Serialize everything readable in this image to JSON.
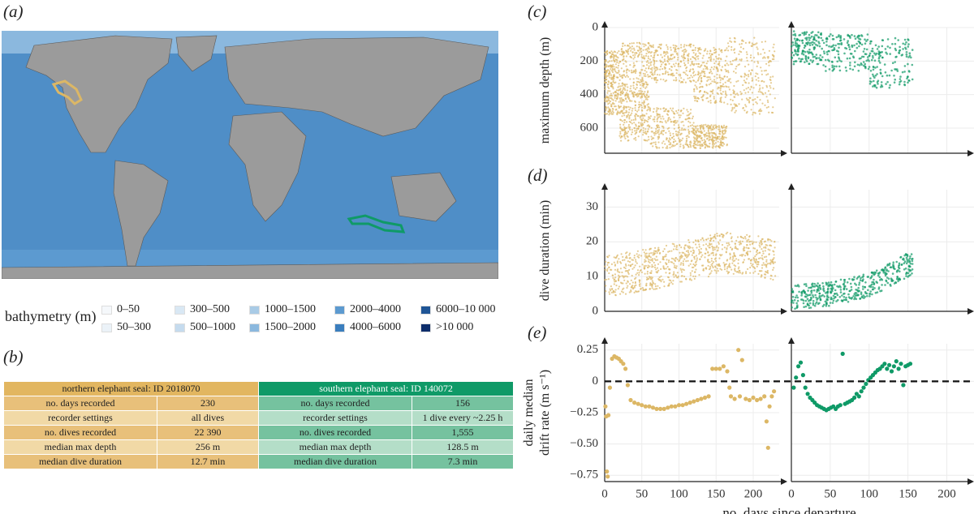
{
  "panels": {
    "a": "(a)",
    "b": "(b)",
    "c": "(c)",
    "d": "(d)",
    "e": "(e)"
  },
  "legend": {
    "title": "bathymetry (m)",
    "items": [
      {
        "label": "0–50",
        "color": "#f5f8fb"
      },
      {
        "label": "50–300",
        "color": "#ebf2f8"
      },
      {
        "label": "300–500",
        "color": "#d9e8f4"
      },
      {
        "label": "500–1000",
        "color": "#c5dbee"
      },
      {
        "label": "1000–1500",
        "color": "#a9cbe6"
      },
      {
        "label": "1500–2000",
        "color": "#8bb8de"
      },
      {
        "label": "2000–4000",
        "color": "#5c9ad0"
      },
      {
        "label": "4000–6000",
        "color": "#3a7ebe"
      },
      {
        "label": "6000–10 000",
        "color": "#1f5596"
      },
      {
        "label": ">10 000",
        "color": "#0d2d6b"
      }
    ]
  },
  "colors": {
    "northern": "#dcb765",
    "southern": "#0f9a67",
    "land": "#9b9b9b",
    "ocean": "#4f8ec7"
  },
  "table": {
    "northern_header": "northern elephant seal: ID 2018070",
    "southern_header": "southern elephant seal: ID 140072",
    "rows": [
      {
        "label": "no. days recorded",
        "n": "230",
        "s": "156"
      },
      {
        "label": "recorder settings",
        "n": "all dives",
        "s": "1 dive every ~2.25 h"
      },
      {
        "label": "no. dives recorded",
        "n": "22 390",
        "s": "1,555"
      },
      {
        "label": "median max depth",
        "n": "256 m",
        "s": "128.5 m"
      },
      {
        "label": "median dive duration",
        "n": "12.7 min",
        "s": "7.3 min"
      }
    ]
  },
  "chart_data": [
    {
      "id": "c",
      "type": "scatter",
      "ylabel": "maximum depth (m)",
      "yticks": [
        "0",
        "200",
        "400",
        "600"
      ],
      "ylim": [
        0,
        750
      ],
      "y_reversed": true,
      "xlim_north": [
        0,
        235
      ],
      "xlim_south": [
        0,
        235
      ],
      "series": [
        {
          "name": "northern elephant seal",
          "color": "#dcb765",
          "bands": [
            [
              0,
              20,
              140,
              520
            ],
            [
              20,
              60,
              90,
              420
            ],
            [
              60,
              120,
              100,
              330
            ],
            [
              120,
              165,
              120,
              450
            ],
            [
              165,
              230,
              60,
              520
            ]
          ],
          "deep_bands": [
            [
              20,
              60,
              380,
              680
            ],
            [
              60,
              120,
              480,
              720
            ],
            [
              120,
              165,
              580,
              720
            ]
          ]
        },
        {
          "name": "southern elephant seal",
          "color": "#0f9a67",
          "bands": [
            [
              0,
              40,
              20,
              220
            ],
            [
              40,
              100,
              40,
              260
            ],
            [
              100,
              156,
              60,
              360
            ]
          ]
        }
      ]
    },
    {
      "id": "d",
      "type": "scatter",
      "ylabel": "dive duration (min)",
      "yticks": [
        "0",
        "10",
        "20",
        "30"
      ],
      "ylim": [
        0,
        35
      ],
      "series": [
        {
          "name": "northern elephant seal",
          "color": "#dcb765",
          "trend": [
            [
              0,
              10
            ],
            [
              60,
              12
            ],
            [
              120,
              15
            ],
            [
              160,
              17
            ],
            [
              230,
              15
            ]
          ],
          "spread": 6
        },
        {
          "name": "southern elephant seal",
          "color": "#0f9a67",
          "trend": [
            [
              0,
              4
            ],
            [
              50,
              5
            ],
            [
              100,
              7.5
            ],
            [
              156,
              14
            ]
          ],
          "spread": 3.5
        }
      ]
    },
    {
      "id": "e",
      "type": "scatter",
      "ylabel": "daily median drift rate (m s⁻¹)",
      "ylabel_line1": "daily median",
      "ylabel_line2": "drift rate (m s⁻¹)",
      "yticks": [
        "0.25",
        "0",
        "−0.25",
        "−0.50",
        "−0.75"
      ],
      "ylim": [
        -0.8,
        0.3
      ],
      "xlabel": "no. days since departure",
      "xticks": [
        "0",
        "50",
        "100",
        "150",
        "200"
      ],
      "reference_line": 0,
      "series": [
        {
          "name": "northern elephant seal",
          "color": "#dcb765",
          "points": [
            [
              1,
              -0.2
            ],
            [
              2,
              -0.28
            ],
            [
              3,
              -0.72
            ],
            [
              4,
              -0.76
            ],
            [
              5,
              -0.27
            ],
            [
              7,
              -0.05
            ],
            [
              10,
              0.18
            ],
            [
              13,
              0.2
            ],
            [
              16,
              0.19
            ],
            [
              19,
              0.18
            ],
            [
              22,
              0.16
            ],
            [
              25,
              0.14
            ],
            [
              28,
              0.1
            ],
            [
              31,
              -0.03
            ],
            [
              35,
              -0.15
            ],
            [
              40,
              -0.17
            ],
            [
              45,
              -0.18
            ],
            [
              50,
              -0.19
            ],
            [
              55,
              -0.2
            ],
            [
              60,
              -0.2
            ],
            [
              65,
              -0.21
            ],
            [
              70,
              -0.22
            ],
            [
              75,
              -0.22
            ],
            [
              80,
              -0.22
            ],
            [
              85,
              -0.21
            ],
            [
              90,
              -0.2
            ],
            [
              95,
              -0.2
            ],
            [
              100,
              -0.19
            ],
            [
              105,
              -0.19
            ],
            [
              110,
              -0.18
            ],
            [
              115,
              -0.17
            ],
            [
              120,
              -0.16
            ],
            [
              125,
              -0.15
            ],
            [
              130,
              -0.14
            ],
            [
              135,
              -0.13
            ],
            [
              140,
              -0.12
            ],
            [
              145,
              0.1
            ],
            [
              150,
              0.1
            ],
            [
              155,
              0.1
            ],
            [
              160,
              0.12
            ],
            [
              165,
              0.08
            ],
            [
              168,
              -0.05
            ],
            [
              170,
              -0.12
            ],
            [
              175,
              -0.14
            ],
            [
              180,
              0.25
            ],
            [
              182,
              -0.12
            ],
            [
              185,
              0.17
            ],
            [
              190,
              -0.14
            ],
            [
              195,
              -0.15
            ],
            [
              200,
              -0.13
            ],
            [
              205,
              -0.15
            ],
            [
              210,
              -0.14
            ],
            [
              215,
              -0.12
            ],
            [
              218,
              -0.32
            ],
            [
              220,
              -0.53
            ],
            [
              222,
              -0.2
            ],
            [
              225,
              -0.12
            ],
            [
              228,
              -0.08
            ]
          ]
        },
        {
          "name": "southern elephant seal",
          "color": "#0f9a67",
          "points": [
            [
              3,
              -0.05
            ],
            [
              6,
              0.03
            ],
            [
              9,
              0.12
            ],
            [
              12,
              0.15
            ],
            [
              15,
              0.05
            ],
            [
              18,
              -0.05
            ],
            [
              21,
              -0.1
            ],
            [
              24,
              -0.13
            ],
            [
              27,
              -0.15
            ],
            [
              30,
              -0.17
            ],
            [
              33,
              -0.19
            ],
            [
              36,
              -0.2
            ],
            [
              39,
              -0.21
            ],
            [
              42,
              -0.22
            ],
            [
              45,
              -0.23
            ],
            [
              48,
              -0.22
            ],
            [
              51,
              -0.21
            ],
            [
              54,
              -0.2
            ],
            [
              57,
              -0.22
            ],
            [
              60,
              -0.2
            ],
            [
              63,
              -0.19
            ],
            [
              66,
              0.22
            ],
            [
              69,
              -0.18
            ],
            [
              72,
              -0.17
            ],
            [
              75,
              -0.16
            ],
            [
              78,
              -0.15
            ],
            [
              81,
              -0.13
            ],
            [
              84,
              -0.1
            ],
            [
              87,
              -0.12
            ],
            [
              90,
              -0.08
            ],
            [
              93,
              -0.05
            ],
            [
              96,
              -0.02
            ],
            [
              99,
              0.01
            ],
            [
              102,
              0.03
            ],
            [
              105,
              0.05
            ],
            [
              108,
              0.07
            ],
            [
              111,
              0.09
            ],
            [
              114,
              0.1
            ],
            [
              117,
              0.12
            ],
            [
              120,
              0.14
            ],
            [
              123,
              0.1
            ],
            [
              126,
              0.13
            ],
            [
              129,
              0.08
            ],
            [
              132,
              0.12
            ],
            [
              135,
              0.16
            ],
            [
              138,
              0.1
            ],
            [
              141,
              0.14
            ],
            [
              144,
              -0.03
            ],
            [
              147,
              0.12
            ],
            [
              150,
              0.13
            ],
            [
              153,
              0.14
            ]
          ]
        }
      ]
    }
  ]
}
